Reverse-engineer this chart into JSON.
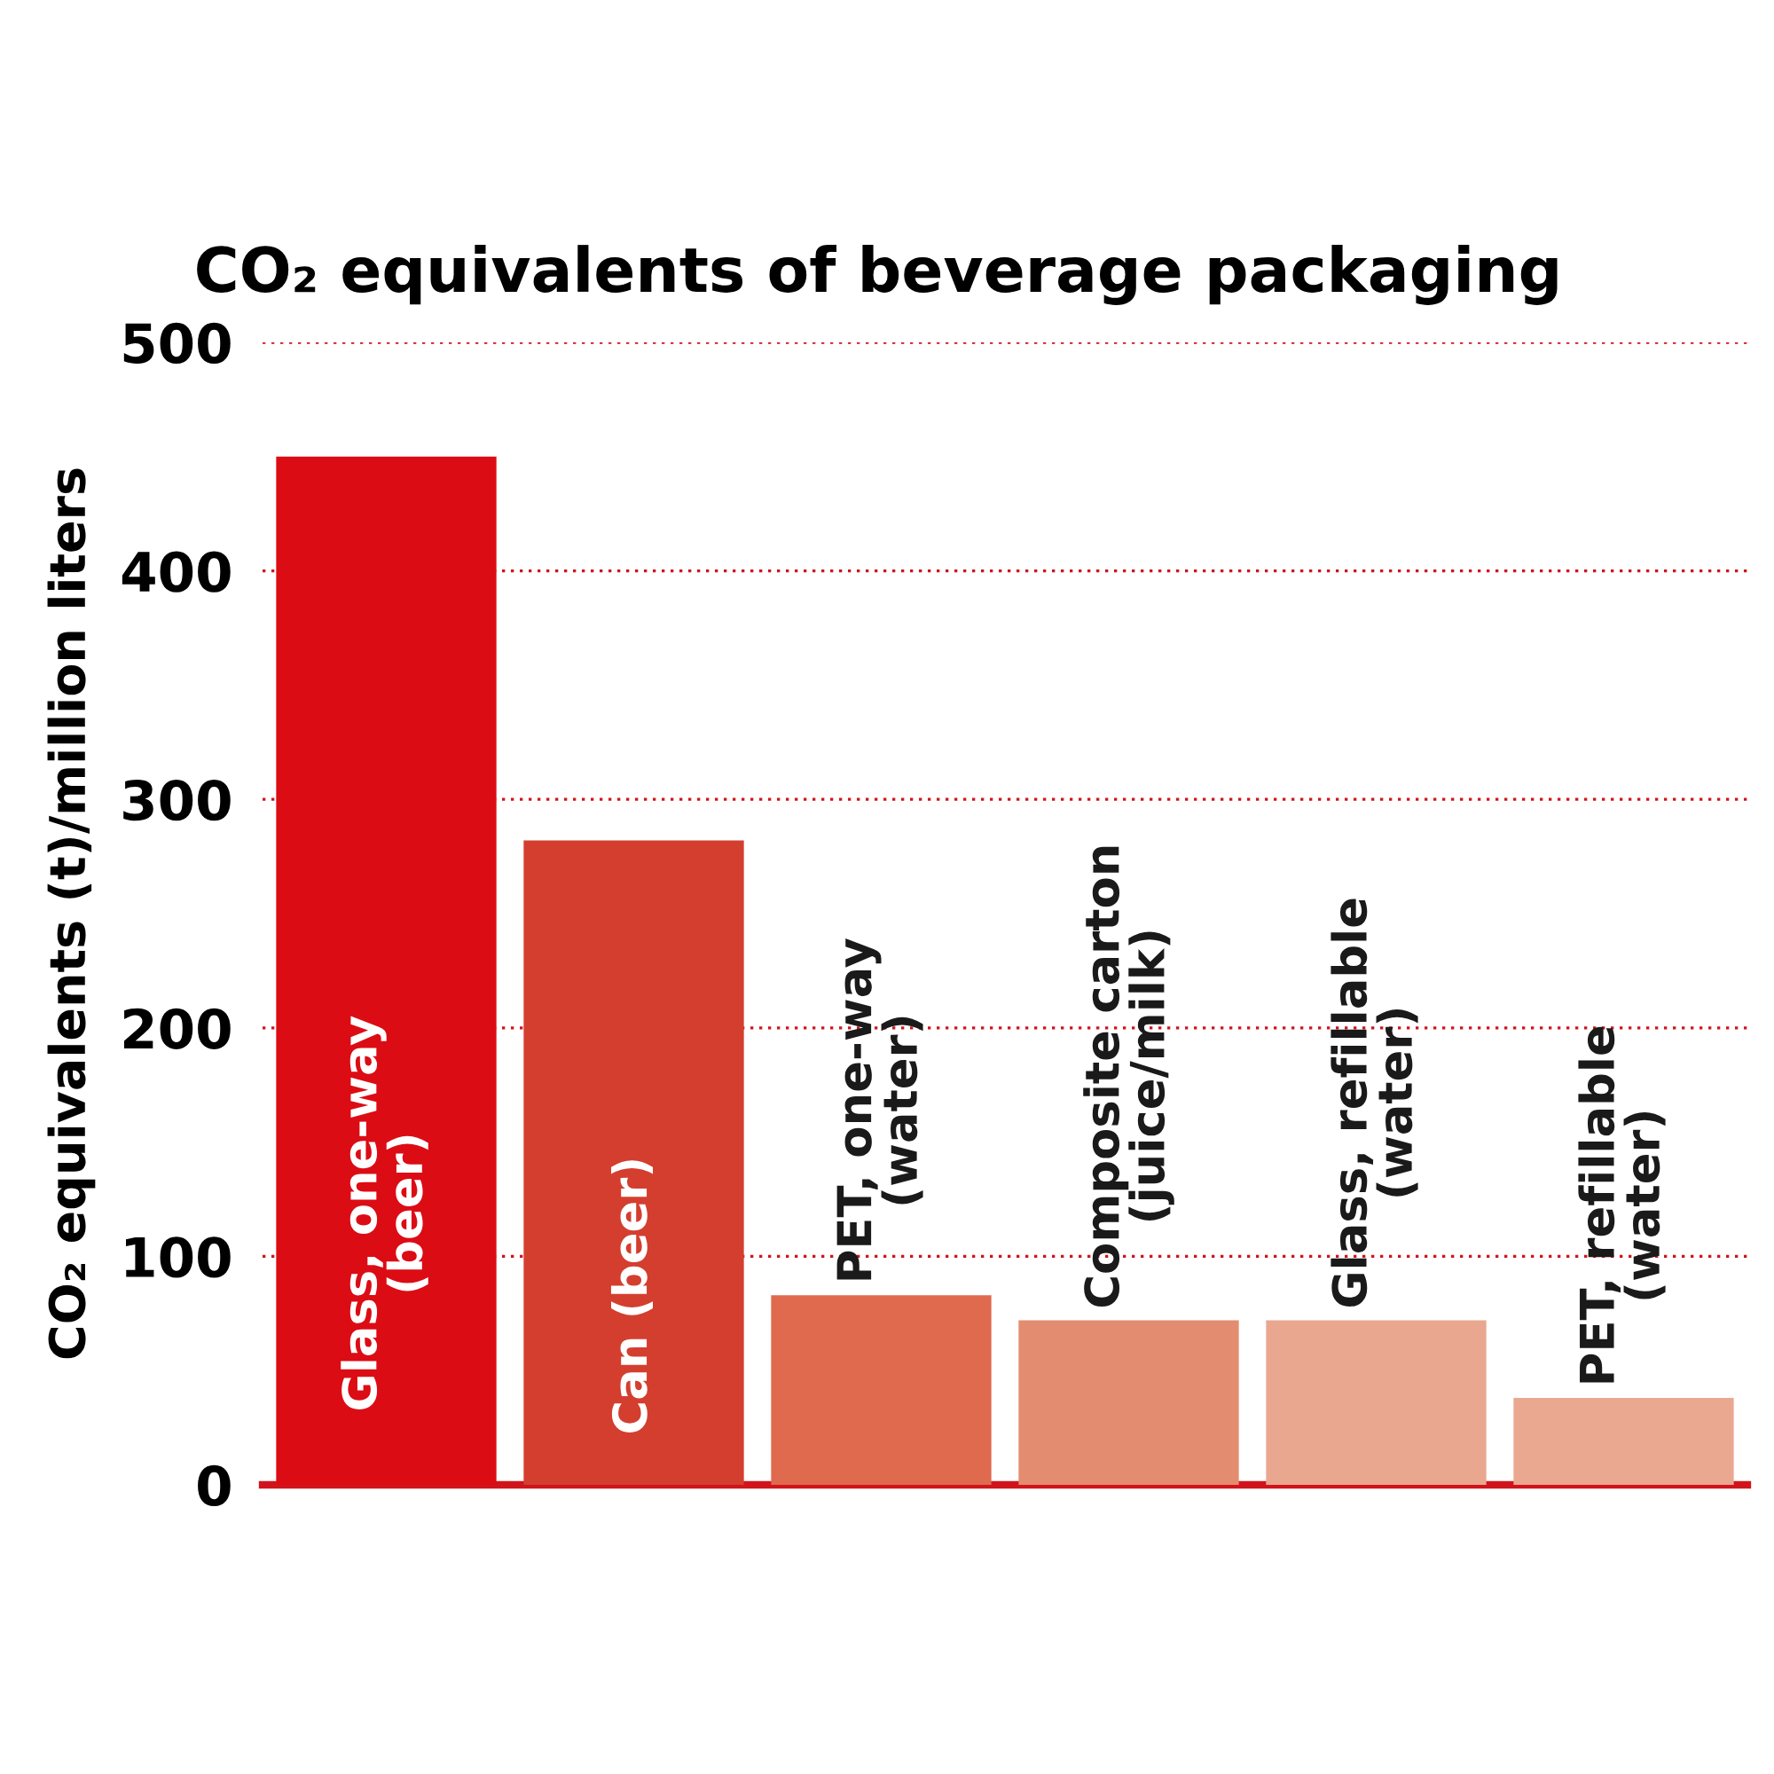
{
  "chart_data": {
    "type": "bar",
    "title": "CO₂ equivalents of beverage packaging",
    "ylabel": "CO₂ equivalents (t)/million liters",
    "categories": [
      "Glass, one-way\n(beer)",
      "Can (beer)",
      "PET, one-way\n(water)",
      "Composite carton\n(juice/milk)",
      "Glass, refillable\n(water)",
      "PET, refillable\n(water)"
    ],
    "values": [
      450,
      282,
      83,
      72,
      72,
      38
    ],
    "colors": [
      "#dc0c15",
      "#d43e2f",
      "#df6a4e",
      "#e48c70",
      "#e9a78f",
      "#eaa891"
    ],
    "ylim": [
      0,
      500
    ],
    "yticks": [
      0,
      100,
      200,
      300,
      400,
      500
    ],
    "grid": "y"
  }
}
